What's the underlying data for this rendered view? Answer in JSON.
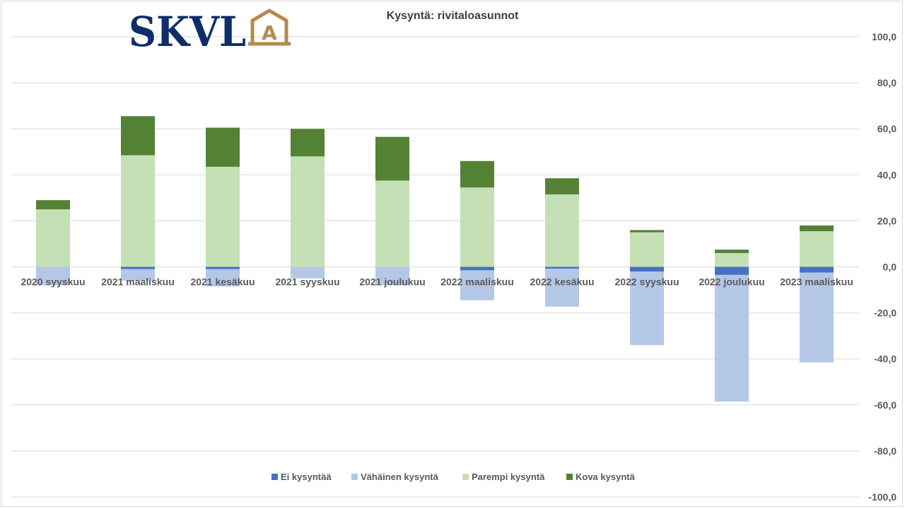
{
  "logo": {
    "text": "SKVL",
    "badge_letter": "A",
    "primary_color": "#0f2d6b",
    "accent_color": "#b48a4e"
  },
  "chart_data": {
    "type": "bar",
    "stacked": true,
    "title": "Kysyntä: rivitaloasunnot",
    "xlabel": "",
    "ylabel": "",
    "categories": [
      "2020 syyskuu",
      "2021 maaliskuu",
      "2021 kesäkuu",
      "2021 syyskuu",
      "2021 joulukuu",
      "2022 maaliskuu",
      "2022 kesäkuu",
      "2022 syyskuu",
      "2022 joulukuu",
      "2023 maaliskuu"
    ],
    "ylim": [
      -100,
      100
    ],
    "y_ticks": [
      "100,0",
      "80,0",
      "60,0",
      "40,0",
      "20,0",
      "0,0",
      "-20,0",
      "-40,0",
      "-60,0",
      "-80,0",
      "-100,0"
    ],
    "y_tick_values": [
      100,
      80,
      60,
      40,
      20,
      0,
      -20,
      -40,
      -60,
      -80,
      -100
    ],
    "y_axis_position": "right",
    "grid": true,
    "legend_position": "bottom",
    "series": [
      {
        "name": "Ei kysyntää",
        "color": "#4472c4",
        "values": [
          0,
          -1,
          -1,
          0,
          0,
          -1.5,
          -0.8,
          -2,
          -3.5,
          -2.5
        ]
      },
      {
        "name": "Vähäinen kysyntä",
        "color": "#b4c7e7",
        "values": [
          -8,
          -5,
          -7.5,
          -5,
          -8,
          -13,
          -16.5,
          -32,
          -55,
          -39
        ]
      },
      {
        "name": "Parempi kysyntä",
        "color": "#c5e0b4",
        "values": [
          25,
          48.5,
          43.5,
          48,
          37.5,
          34.5,
          31.5,
          15,
          6,
          15.5
        ]
      },
      {
        "name": "Kova kysyntä",
        "color": "#548235",
        "values": [
          4,
          17,
          17,
          12,
          19,
          11.5,
          7,
          1,
          1.5,
          2.5
        ]
      }
    ]
  }
}
